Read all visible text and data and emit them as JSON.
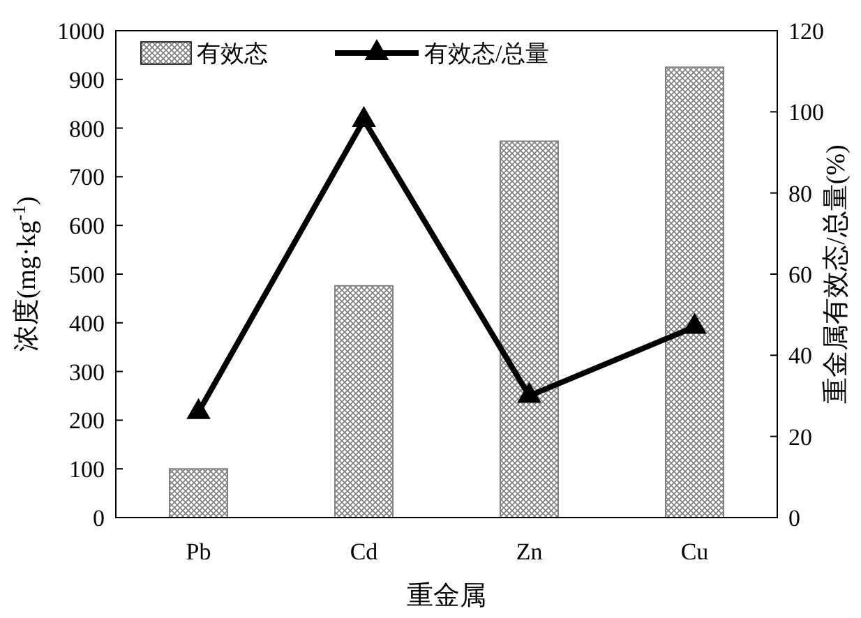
{
  "chart_data": {
    "type": "bar",
    "xlabel": "重金属",
    "ylabel": "浓度(mg·kg$^{-1}$)",
    "y2label": "重金属有效态/总量(%)",
    "categories": [
      "Pb",
      "Cd",
      "Zn",
      "Cu"
    ],
    "series": [
      {
        "name": "有效态",
        "color": "#808080",
        "values": [
          100,
          476,
          773,
          925
        ]
      },
      {
        "name": "有效态/总量",
        "type": "line",
        "axis": "y2",
        "color": "#000000",
        "values": [
          26,
          98,
          30,
          47
        ]
      }
    ],
    "ylim": [
      0,
      1000
    ],
    "yticks": [
      0,
      100,
      200,
      300,
      400,
      500,
      600,
      700,
      800,
      900,
      1000
    ],
    "y2lim": [
      0,
      120
    ],
    "y2ticks": [
      0,
      20,
      40,
      60,
      80,
      100,
      120
    ],
    "legend": "top left",
    "marker": "triangle",
    "line_style": "solid",
    "grid": false
  }
}
